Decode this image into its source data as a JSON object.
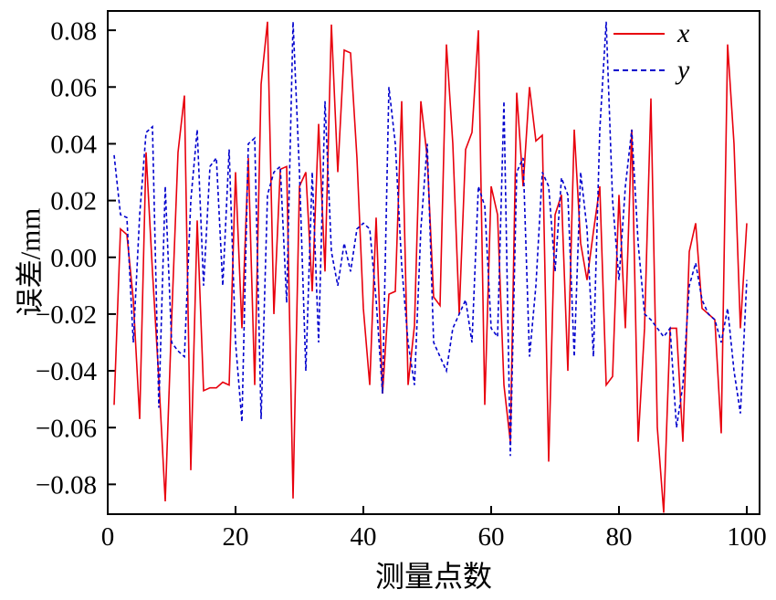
{
  "figure": {
    "background": "#ffffff"
  },
  "legend": [
    {
      "label": "x",
      "color": "#e8000d",
      "line_style": "solid"
    },
    {
      "label": "y",
      "color": "#0000cd",
      "line_style": "dashed"
    }
  ],
  "chart_data": {
    "type": "line",
    "title": "",
    "xlabel": "测量点数",
    "ylabel": "误差/mm",
    "grid": false,
    "legend_position": "top-right",
    "xlim": [
      0,
      102
    ],
    "ylim": [
      -0.0905,
      0.0868
    ],
    "xticks": [
      0,
      20,
      40,
      60,
      80,
      100
    ],
    "xtick_labels": [
      "0",
      "20",
      "40",
      "60",
      "80",
      "100"
    ],
    "yticks": [
      0.08,
      0.06,
      0.04,
      0.02,
      0.0,
      -0.02,
      -0.04,
      -0.06,
      -0.08
    ],
    "ytick_labels": [
      "0.08",
      "0.06",
      "0.04",
      "0.02",
      "0.00",
      "−0.02",
      "−0.04",
      "−0.06",
      "−0.08"
    ],
    "x": [
      1,
      2,
      3,
      4,
      5,
      6,
      7,
      8,
      9,
      10,
      11,
      12,
      13,
      14,
      15,
      16,
      17,
      18,
      19,
      20,
      21,
      22,
      23,
      24,
      25,
      26,
      27,
      28,
      29,
      30,
      31,
      32,
      33,
      34,
      35,
      36,
      37,
      38,
      39,
      40,
      41,
      42,
      43,
      44,
      45,
      46,
      47,
      48,
      49,
      50,
      51,
      52,
      53,
      54,
      55,
      56,
      57,
      58,
      59,
      60,
      61,
      62,
      63,
      64,
      65,
      66,
      67,
      68,
      69,
      70,
      71,
      72,
      73,
      74,
      75,
      76,
      77,
      78,
      79,
      80,
      81,
      82,
      83,
      84,
      85,
      86,
      87,
      88,
      89,
      90,
      91,
      92,
      93,
      94,
      95,
      96,
      97,
      98,
      99,
      100
    ],
    "series": [
      {
        "name": "x",
        "color": "#e8000d",
        "style": "solid",
        "values": [
          -0.052,
          0.01,
          0.008,
          -0.015,
          -0.057,
          0.037,
          -0.005,
          -0.043,
          -0.086,
          -0.022,
          0.037,
          0.057,
          -0.075,
          0.013,
          -0.047,
          -0.046,
          -0.046,
          -0.044,
          -0.045,
          0.03,
          -0.025,
          0.035,
          -0.045,
          0.061,
          0.083,
          -0.02,
          0.031,
          0.032,
          -0.085,
          0.025,
          0.03,
          -0.012,
          0.047,
          -0.005,
          0.082,
          0.03,
          0.073,
          0.072,
          0.035,
          -0.018,
          -0.045,
          0.014,
          -0.048,
          -0.013,
          -0.012,
          0.055,
          -0.045,
          -0.024,
          0.055,
          0.035,
          -0.014,
          -0.017,
          0.075,
          0.04,
          -0.02,
          0.038,
          0.044,
          0.08,
          -0.052,
          0.025,
          0.015,
          -0.045,
          -0.065,
          0.058,
          0.025,
          0.06,
          0.041,
          0.043,
          -0.072,
          0.015,
          0.022,
          -0.04,
          0.045,
          0.005,
          -0.008,
          0.009,
          0.025,
          -0.045,
          -0.042,
          0.022,
          -0.025,
          0.045,
          -0.065,
          -0.025,
          0.056,
          -0.06,
          -0.09,
          -0.025,
          -0.025,
          -0.065,
          0.002,
          0.012,
          -0.018,
          -0.02,
          -0.022,
          -0.062,
          0.075,
          0.04,
          -0.025,
          0.012
        ]
      },
      {
        "name": "y",
        "color": "#0000cd",
        "style": "dashed",
        "values": [
          0.036,
          0.015,
          0.014,
          -0.03,
          0.015,
          0.044,
          0.046,
          -0.053,
          0.025,
          -0.03,
          -0.033,
          -0.035,
          0.02,
          0.045,
          -0.01,
          0.032,
          0.035,
          -0.01,
          0.038,
          -0.03,
          -0.058,
          0.04,
          0.042,
          -0.057,
          0.022,
          0.03,
          0.032,
          -0.016,
          0.083,
          0.03,
          -0.04,
          0.03,
          -0.03,
          0.055,
          0.002,
          -0.01,
          0.005,
          -0.005,
          0.01,
          0.012,
          0.01,
          -0.015,
          -0.048,
          0.06,
          0.04,
          -0.003,
          -0.03,
          -0.045,
          0.01,
          0.04,
          -0.03,
          -0.035,
          -0.04,
          -0.025,
          -0.02,
          -0.015,
          -0.03,
          0.025,
          0.018,
          -0.025,
          -0.028,
          0.055,
          -0.07,
          0.03,
          0.035,
          -0.035,
          -0.01,
          0.03,
          0.025,
          -0.005,
          0.028,
          0.022,
          -0.035,
          0.03,
          0.01,
          -0.035,
          0.045,
          0.083,
          0.02,
          -0.008,
          0.025,
          0.045,
          0.005,
          -0.02,
          -0.022,
          -0.025,
          -0.028,
          -0.025,
          -0.06,
          -0.045,
          -0.01,
          -0.002,
          -0.015,
          -0.02,
          -0.022,
          -0.03,
          -0.018,
          -0.04,
          -0.055,
          -0.008
        ]
      }
    ]
  }
}
